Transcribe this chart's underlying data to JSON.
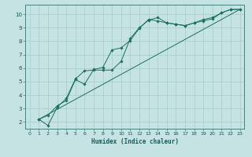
{
  "xlabel": "Humidex (Indice chaleur)",
  "ylabel": "",
  "bg_color": "#c5e3e3",
  "grid_color": "#aacfcf",
  "line_color": "#1a7060",
  "marker_color": "#1a7060",
  "xlim": [
    -0.5,
    23.5
  ],
  "ylim": [
    1.5,
    10.7
  ],
  "xticks": [
    0,
    1,
    2,
    3,
    4,
    5,
    6,
    7,
    8,
    9,
    10,
    11,
    12,
    13,
    14,
    15,
    16,
    17,
    18,
    19,
    20,
    21,
    22,
    23
  ],
  "yticks": [
    2,
    3,
    4,
    5,
    6,
    7,
    8,
    9,
    10
  ],
  "line1_x": [
    1,
    2,
    3,
    4,
    5,
    6,
    7,
    8,
    9,
    10,
    11,
    12,
    13,
    14,
    15,
    16,
    17,
    18,
    19,
    20,
    21,
    22,
    23
  ],
  "line1_y": [
    2.2,
    1.75,
    3.1,
    3.75,
    5.2,
    5.8,
    5.85,
    5.85,
    5.85,
    6.5,
    8.2,
    9.0,
    9.55,
    9.75,
    9.35,
    9.25,
    9.15,
    9.35,
    9.5,
    9.65,
    10.1,
    10.35,
    10.35
  ],
  "line2_x": [
    1,
    2,
    3,
    4,
    5,
    6,
    7,
    8,
    9,
    10,
    11,
    12,
    13,
    14,
    15,
    16,
    17,
    18,
    19,
    20,
    21,
    22,
    23
  ],
  "line2_y": [
    2.2,
    2.5,
    3.2,
    3.6,
    5.15,
    4.8,
    5.9,
    6.05,
    7.35,
    7.5,
    8.05,
    8.95,
    9.6,
    9.5,
    9.35,
    9.25,
    9.15,
    9.35,
    9.6,
    9.75,
    10.1,
    10.35,
    10.35
  ],
  "line3_x": [
    1,
    23
  ],
  "line3_y": [
    2.2,
    10.35
  ]
}
